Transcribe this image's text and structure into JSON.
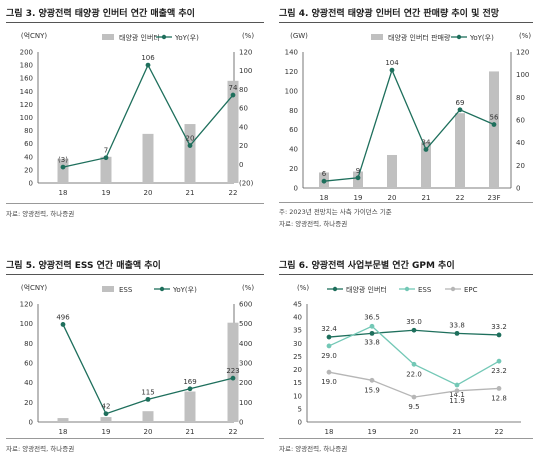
{
  "chart_data": [
    {
      "type": "bar+line",
      "title": "그림 3. 양광전력 태양광 인버터 연간 매출액 추이",
      "y_left_unit": "(억CNY)",
      "y_right_unit": "(%)",
      "categories": [
        "18",
        "19",
        "20",
        "21",
        "22"
      ],
      "y_left_ticks": [
        "0",
        "20",
        "40",
        "60",
        "80",
        "100",
        "120",
        "140",
        "160",
        "180",
        "200"
      ],
      "y_right_ticks": [
        "(20)",
        "0",
        "20",
        "40",
        "60",
        "80",
        "100",
        "120"
      ],
      "ylim_left": [
        0,
        200
      ],
      "ylim_right": [
        -20,
        120
      ],
      "legend": [
        "태양광 인버터",
        "YoY(우)"
      ],
      "series": [
        {
          "name": "태양광 인버터",
          "kind": "bar",
          "axis": "left",
          "values": [
            37,
            40,
            75,
            90,
            156
          ]
        },
        {
          "name": "YoY(우)",
          "kind": "line",
          "axis": "right",
          "values": [
            -3,
            7,
            106,
            20,
            74
          ],
          "labels": [
            "(3)",
            "7",
            "106",
            "20",
            "74"
          ]
        }
      ],
      "source": "자료: 양광전력, 하나증권"
    },
    {
      "type": "bar+line",
      "title": "그림 4. 양광전력 태양광 인버터 연간 판매량 추이 및 전망",
      "y_left_unit": "(GW)",
      "y_right_unit": "(%)",
      "categories": [
        "18",
        "19",
        "20",
        "21",
        "22",
        "23F"
      ],
      "y_left_ticks": [
        "0",
        "20",
        "40",
        "60",
        "80",
        "100",
        "120",
        "140"
      ],
      "y_right_ticks": [
        "0",
        "20",
        "40",
        "60",
        "80",
        "100",
        "120"
      ],
      "ylim_left": [
        0,
        140
      ],
      "ylim_right": [
        0,
        120
      ],
      "legend": [
        "태양광 인버터 판매량",
        "YoY(우)"
      ],
      "series": [
        {
          "name": "태양광 인버터 판매량",
          "kind": "bar",
          "axis": "left",
          "values": [
            16,
            17,
            34,
            47,
            77,
            120
          ]
        },
        {
          "name": "YoY(우)",
          "kind": "line",
          "axis": "right",
          "values": [
            6,
            9,
            104,
            34,
            69,
            56
          ],
          "labels": [
            "6",
            "9",
            "104",
            "34",
            "69",
            "56"
          ]
        }
      ],
      "notes": [
        "주: 2023년 전망치는 사측 가이던스 기준",
        "자료: 양광전력, 하나증권"
      ]
    },
    {
      "type": "bar+line",
      "title": "그림 5. 양광전력 ESS 연간 매출액 추이",
      "y_left_unit": "(억CNY)",
      "y_right_unit": "(%)",
      "categories": [
        "18",
        "19",
        "20",
        "21",
        "22"
      ],
      "y_left_ticks": [
        "0",
        "20",
        "40",
        "60",
        "80",
        "100",
        "120"
      ],
      "y_right_ticks": [
        "0",
        "100",
        "200",
        "300",
        "400",
        "500",
        "600"
      ],
      "ylim_left": [
        0,
        120
      ],
      "ylim_right": [
        0,
        600
      ],
      "legend": [
        "ESS",
        "YoY(우)"
      ],
      "series": [
        {
          "name": "ESS",
          "kind": "bar",
          "axis": "left",
          "values": [
            4,
            5,
            11,
            31,
            101
          ]
        },
        {
          "name": "YoY(우)",
          "kind": "line",
          "axis": "right",
          "values": [
            496,
            42,
            115,
            169,
            223
          ],
          "labels": [
            "496",
            "42",
            "115",
            "169",
            "223"
          ]
        }
      ],
      "source": "자료: 양광전력, 하나증권"
    },
    {
      "type": "line",
      "title": "그림 6. 양광전력 사업부문별 연간 GPM 추이",
      "y_left_unit": "(%)",
      "categories": [
        "18",
        "19",
        "20",
        "21",
        "22"
      ],
      "y_left_ticks": [
        "0",
        "5",
        "10",
        "15",
        "20",
        "25",
        "30",
        "35",
        "40",
        "45"
      ],
      "ylim_left": [
        0,
        45
      ],
      "legend": [
        "태양광 인버터",
        "ESS",
        "EPC"
      ],
      "series": [
        {
          "name": "태양광 인버터",
          "kind": "line",
          "values": [
            32.4,
            33.8,
            35.0,
            33.8,
            33.2
          ],
          "labels": [
            "32.4",
            "33.8",
            "35.0",
            "33.8",
            "33.2"
          ]
        },
        {
          "name": "ESS",
          "kind": "line",
          "values": [
            29.0,
            36.5,
            22.0,
            14.1,
            23.2
          ],
          "labels": [
            "29.0",
            "36.5",
            "22.0",
            "14.1",
            "23.2"
          ]
        },
        {
          "name": "EPC",
          "kind": "line",
          "values": [
            19.0,
            15.9,
            9.5,
            11.9,
            12.8
          ],
          "labels": [
            "19.0",
            "15.9",
            "9.5",
            "11.9",
            "12.8"
          ]
        }
      ],
      "source": "자료: 양광전력, 하나증권"
    }
  ],
  "colors": {
    "bar": "#c0c0c0",
    "line_dark": "#1e6f5c",
    "line_light": "#73c8b6",
    "line_gray": "#b6b6b6",
    "axis": "#555555"
  }
}
